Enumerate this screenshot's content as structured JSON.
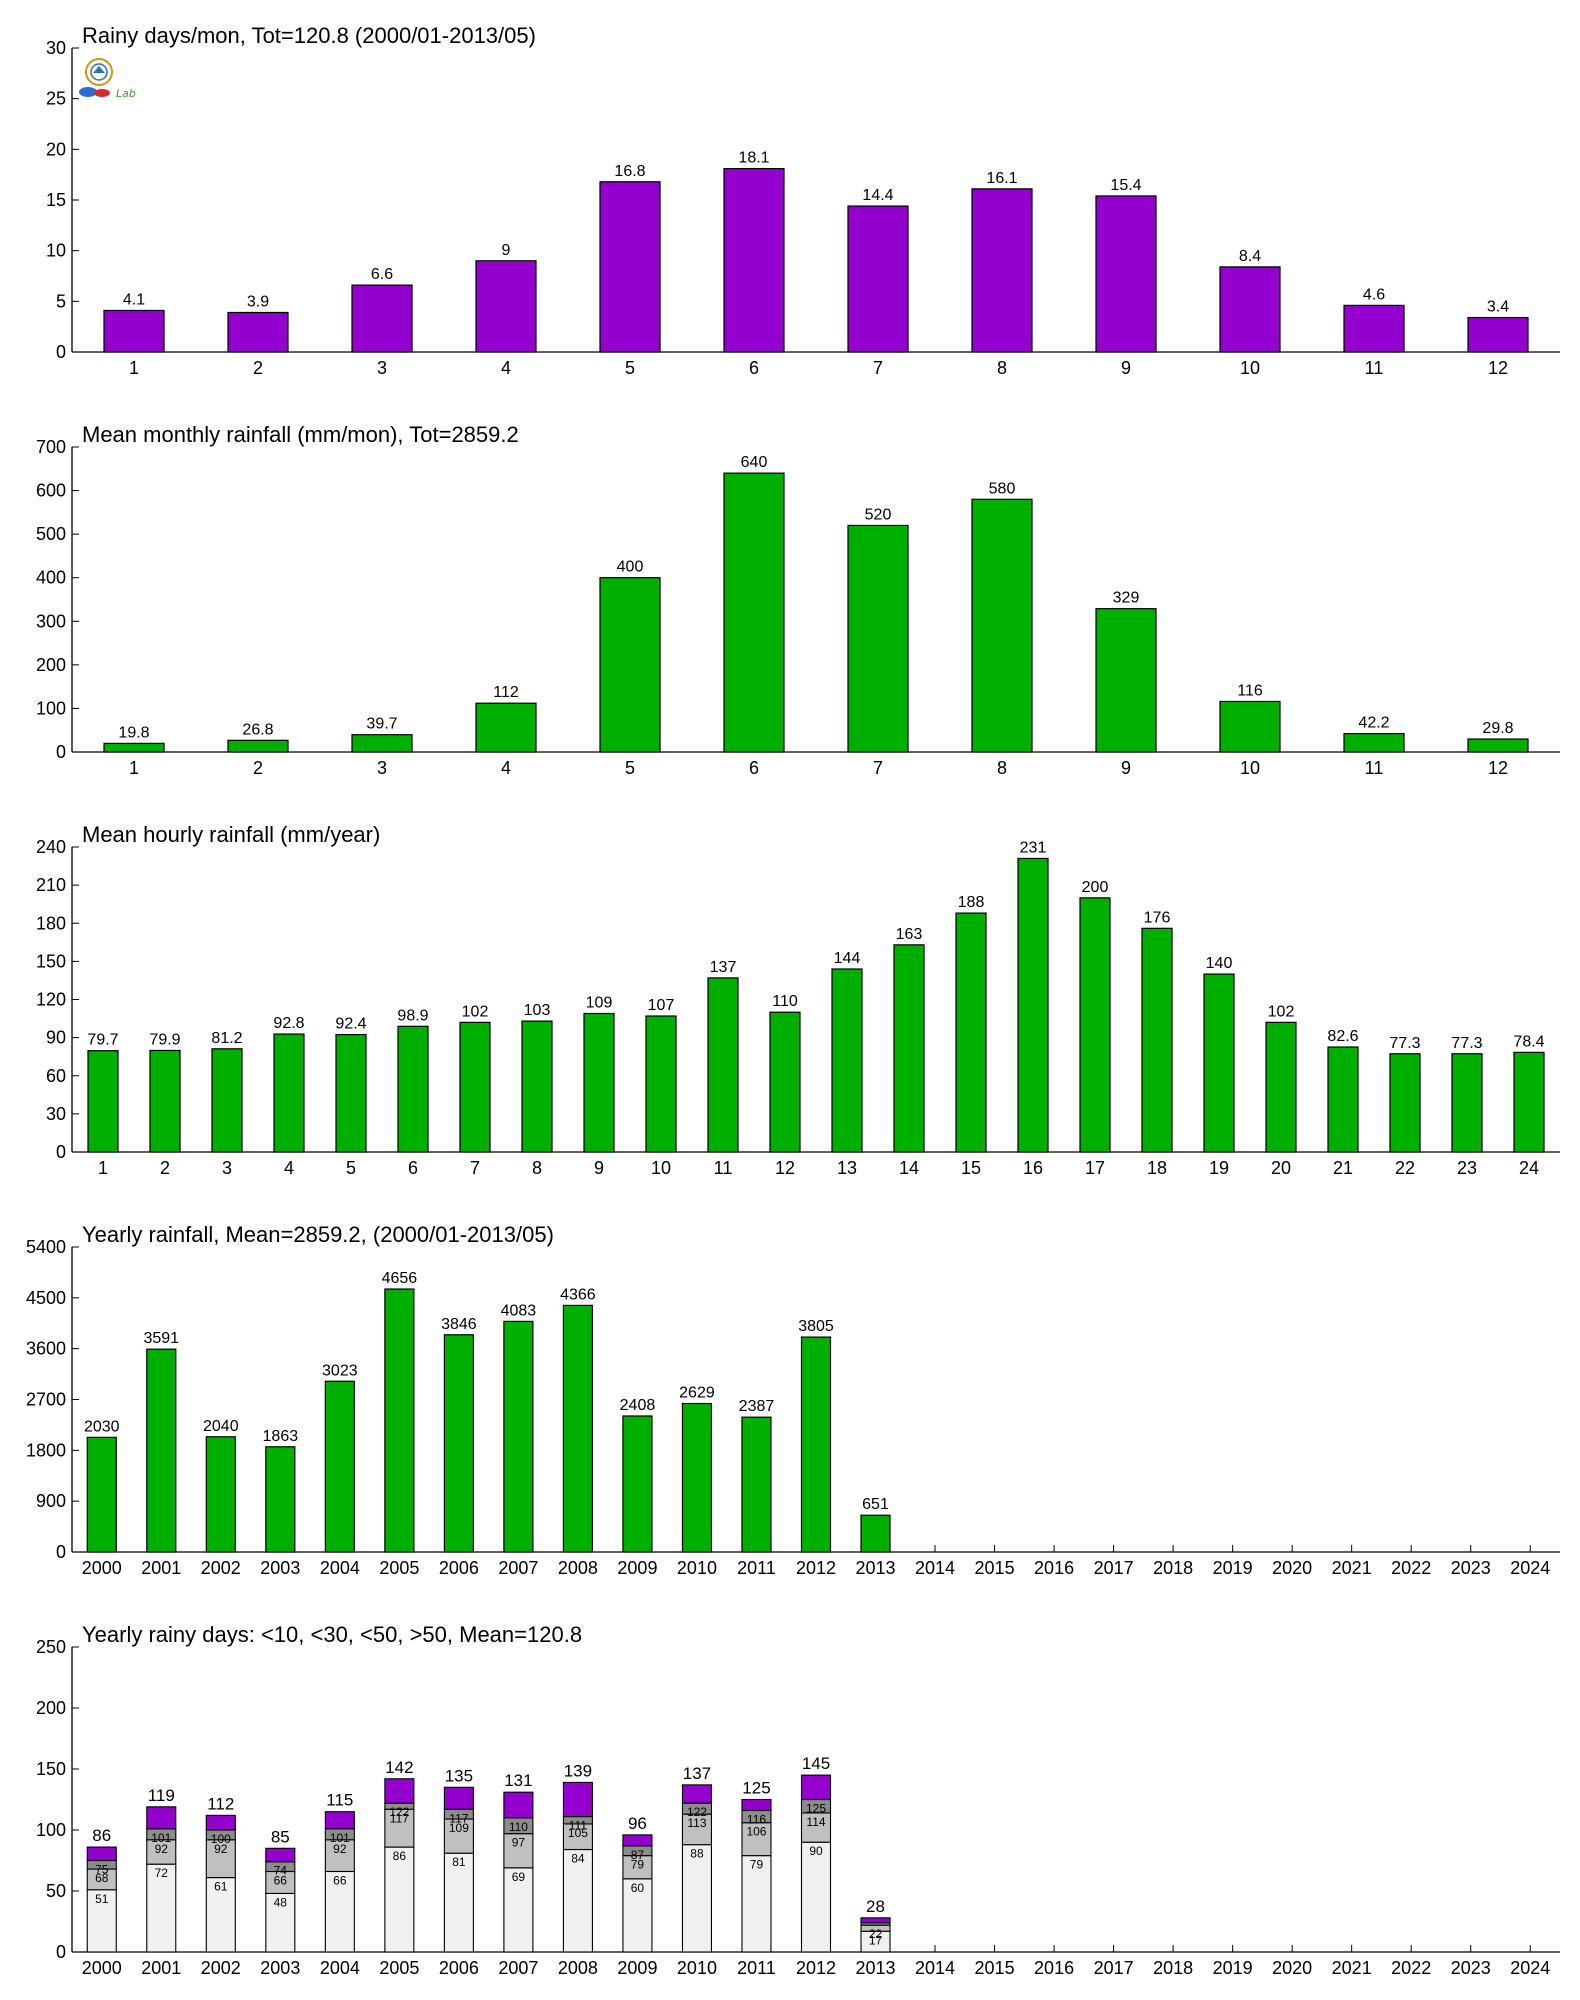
{
  "logo": {
    "label": "Lab",
    "colors": [
      "#2b6fd6",
      "#e0a800",
      "#36a82a",
      "#d62b2b"
    ]
  },
  "colors": {
    "purple": "#9400cd",
    "green": "#00b000",
    "light_gray": "#f0f0f0",
    "mid_gray": "#c0c0c0",
    "dark_gray": "#8c8c8c",
    "axis": "#000000"
  },
  "chart_data": [
    {
      "type": "bar",
      "title": "Rainy days/mon, Tot=120.8 (2000/01-2013/05)",
      "categories": [
        "1",
        "2",
        "3",
        "4",
        "5",
        "6",
        "7",
        "8",
        "9",
        "10",
        "11",
        "12"
      ],
      "values": [
        4.1,
        3.9,
        6.6,
        9,
        16.8,
        18.1,
        14.4,
        16.1,
        15.4,
        8.4,
        4.6,
        3.4
      ],
      "data_labels": [
        "4.1",
        "3.9",
        "6.6",
        "9",
        "16.8",
        "18.1",
        "14.4",
        "16.1",
        "15.4",
        "8.4",
        "4.6",
        "3.4"
      ],
      "ylim": [
        0,
        30
      ],
      "yticks": [
        0,
        5,
        10,
        15,
        20,
        25,
        30
      ],
      "color": "#9400cd",
      "grid": false
    },
    {
      "type": "bar",
      "title": "Mean monthly rainfall (mm/mon), Tot=2859.2",
      "categories": [
        "1",
        "2",
        "3",
        "4",
        "5",
        "6",
        "7",
        "8",
        "9",
        "10",
        "11",
        "12"
      ],
      "values": [
        19.8,
        26.8,
        39.7,
        112,
        400,
        640,
        520,
        580,
        329,
        116,
        42.2,
        29.8
      ],
      "data_labels": [
        "19.8",
        "26.8",
        "39.7",
        "112",
        "400",
        "640",
        "520",
        "580",
        "329",
        "116",
        "42.2",
        "29.8"
      ],
      "ylim": [
        0,
        700
      ],
      "yticks": [
        0,
        100,
        200,
        300,
        400,
        500,
        600,
        700
      ],
      "color": "#00b000",
      "grid": false
    },
    {
      "type": "bar",
      "title": "Mean hourly rainfall (mm/year)",
      "categories": [
        "1",
        "2",
        "3",
        "4",
        "5",
        "6",
        "7",
        "8",
        "9",
        "10",
        "11",
        "12",
        "13",
        "14",
        "15",
        "16",
        "17",
        "18",
        "19",
        "20",
        "21",
        "22",
        "23",
        "24"
      ],
      "values": [
        79.7,
        79.9,
        81.2,
        92.8,
        92.4,
        98.9,
        102,
        103,
        109,
        107,
        137,
        110,
        144,
        163,
        188,
        231,
        200,
        176,
        140,
        102,
        82.6,
        77.3,
        77.3,
        78.4
      ],
      "data_labels": [
        "79.7",
        "79.9",
        "81.2",
        "92.8",
        "92.4",
        "98.9",
        "102",
        "103",
        "109",
        "107",
        "137",
        "110",
        "144",
        "163",
        "188",
        "231",
        "200",
        "176",
        "140",
        "102",
        "82.6",
        "77.3",
        "77.3",
        "78.4"
      ],
      "ylim": [
        0,
        240
      ],
      "yticks": [
        0,
        30,
        60,
        90,
        120,
        150,
        180,
        210,
        240
      ],
      "color": "#00b000",
      "grid": false
    },
    {
      "type": "bar",
      "title": "Yearly rainfall, Mean=2859.2, (2000/01-2013/05)",
      "categories": [
        "2000",
        "2001",
        "2002",
        "2003",
        "2004",
        "2005",
        "2006",
        "2007",
        "2008",
        "2009",
        "2010",
        "2011",
        "2012",
        "2013",
        "2014",
        "2015",
        "2016",
        "2017",
        "2018",
        "2019",
        "2020",
        "2021",
        "2022",
        "2023",
        "2024"
      ],
      "values": [
        2030,
        3591,
        2040,
        1863,
        3023,
        4656,
        3846,
        4083,
        4366,
        2408,
        2629,
        2387,
        3805,
        651,
        null,
        null,
        null,
        null,
        null,
        null,
        null,
        null,
        null,
        null,
        null
      ],
      "data_labels": [
        "2030",
        "3591",
        "2040",
        "1863",
        "3023",
        "4656",
        "3846",
        "4083",
        "4366",
        "2408",
        "2629",
        "2387",
        "3805",
        "651",
        "",
        "",
        "",
        "",
        "",
        "",
        "",
        "",
        "",
        "",
        ""
      ],
      "ylim": [
        0,
        5400
      ],
      "yticks": [
        0,
        900,
        1800,
        2700,
        3600,
        4500,
        5400
      ],
      "color": "#00b000",
      "grid": false
    },
    {
      "type": "bar",
      "stacked": true,
      "title": "Yearly rainy days: <10, <30, <50, >50, Mean=120.8",
      "categories": [
        "2000",
        "2001",
        "2002",
        "2003",
        "2004",
        "2005",
        "2006",
        "2007",
        "2008",
        "2009",
        "2010",
        "2011",
        "2012",
        "2013",
        "2014",
        "2015",
        "2016",
        "2017",
        "2018",
        "2019",
        "2020",
        "2021",
        "2022",
        "2023",
        "2024"
      ],
      "cumulative": [
        [
          51,
          68,
          75,
          86
        ],
        [
          72,
          92,
          101,
          119
        ],
        [
          61,
          92,
          100,
          112
        ],
        [
          48,
          66,
          74,
          85
        ],
        [
          66,
          92,
          101,
          115
        ],
        [
          86,
          117,
          122,
          142
        ],
        [
          81,
          109,
          117,
          135
        ],
        [
          69,
          97,
          110,
          131
        ],
        [
          84,
          105,
          111,
          139
        ],
        [
          60,
          79,
          87,
          96
        ],
        [
          88,
          113,
          122,
          137
        ],
        [
          79,
          106,
          116,
          125
        ],
        [
          90,
          114,
          125,
          145
        ],
        [
          17,
          22,
          24,
          28
        ]
      ],
      "segment_labels": [
        [
          "51",
          "68",
          "75"
        ],
        [
          "72",
          "92",
          "101"
        ],
        [
          "61",
          "92",
          "100"
        ],
        [
          "48",
          "66",
          "74"
        ],
        [
          "66",
          "92",
          "101"
        ],
        [
          "86",
          "117",
          "122"
        ],
        [
          "81",
          "109",
          "117"
        ],
        [
          "69",
          "97",
          "110"
        ],
        [
          "84",
          "105",
          "111"
        ],
        [
          "60",
          "79",
          "87"
        ],
        [
          "88",
          "113",
          "122"
        ],
        [
          "79",
          "106",
          "116"
        ],
        [
          "90",
          "114",
          "125"
        ],
        [
          "17",
          "22",
          ""
        ]
      ],
      "total_labels": [
        "86",
        "119",
        "112",
        "85",
        "115",
        "142",
        "135",
        "131",
        "139",
        "96",
        "137",
        "125",
        "145",
        "28"
      ],
      "ylim": [
        0,
        250
      ],
      "yticks": [
        0,
        50,
        100,
        150,
        200,
        250
      ],
      "segment_colors": [
        "#f0f0f0",
        "#c0c0c0",
        "#8c8c8c",
        "#9400cd"
      ],
      "grid": false
    }
  ]
}
